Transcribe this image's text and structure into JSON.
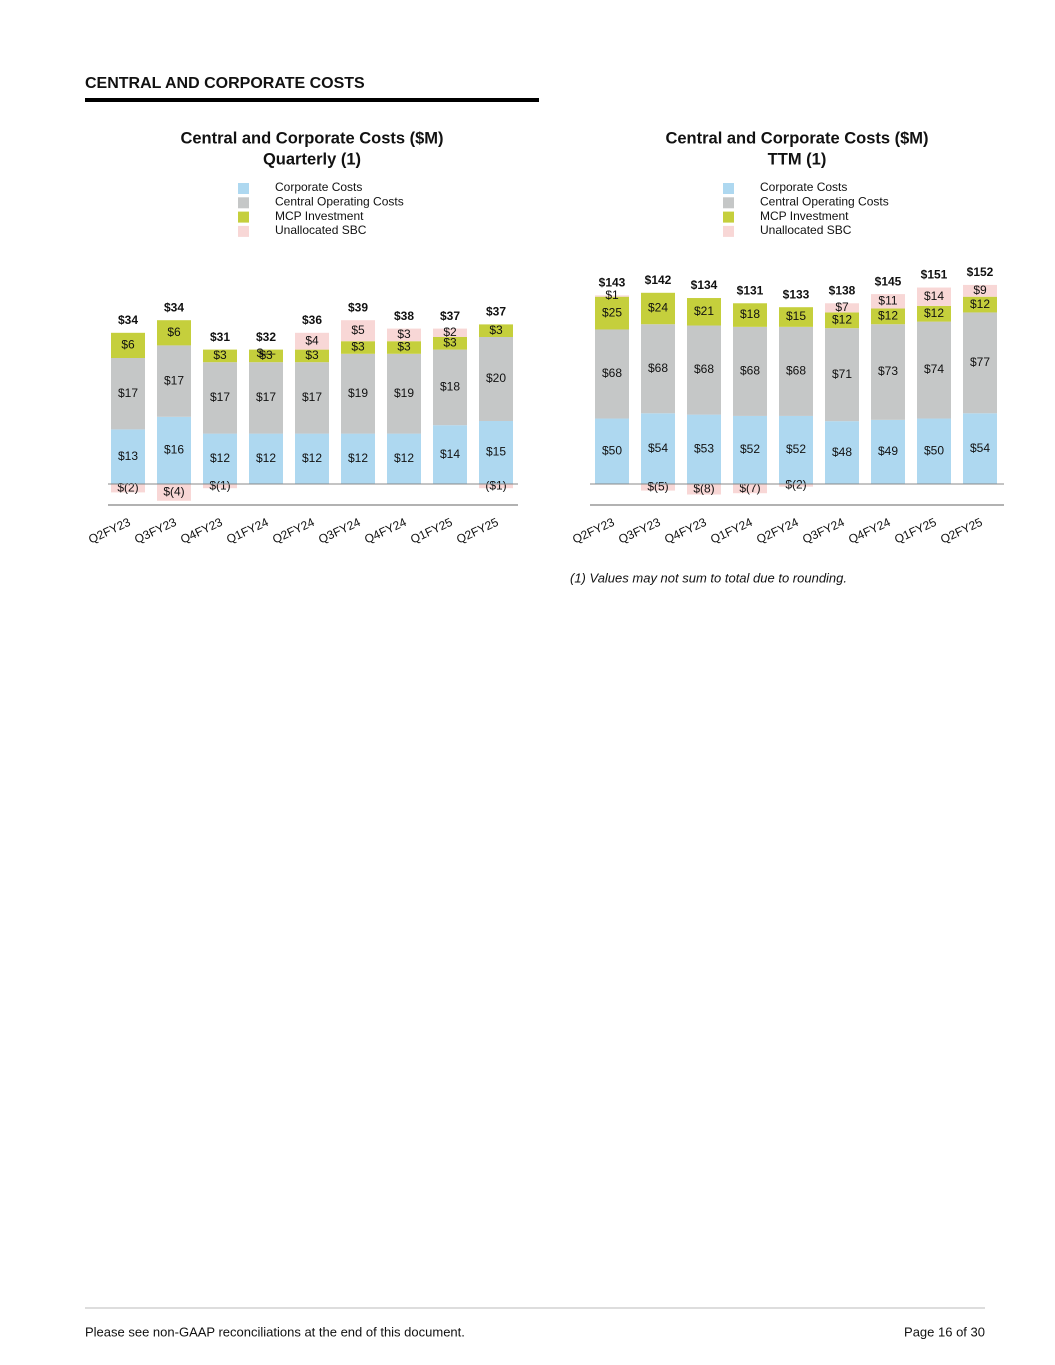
{
  "section_title": "CENTRAL AND CORPORATE COSTS",
  "chart_data": [
    {
      "type": "stacked-bar",
      "title": "Central and Corporate Costs ($M)",
      "subtitle": "Quarterly (1)",
      "categories": [
        "Q2FY23",
        "Q3FY23",
        "Q4FY23",
        "Q1FY24",
        "Q2FY24",
        "Q3FY24",
        "Q4FY24",
        "Q1FY25",
        "Q2FY25"
      ],
      "ylim": [
        -5,
        40
      ],
      "series": [
        {
          "name": "Corporate Costs",
          "color": "#aed8f0",
          "values": [
            13,
            16,
            12,
            12,
            12,
            12,
            12,
            14,
            15
          ],
          "value_labels": [
            "$13",
            "$16",
            "$12",
            "$12",
            "$12",
            "$12",
            "$12",
            "$14",
            "$15"
          ]
        },
        {
          "name": "Central Operating Costs",
          "color": "#c5c7c7",
          "values": [
            17,
            17,
            17,
            17,
            17,
            19,
            19,
            18,
            20
          ],
          "value_labels": [
            "$17",
            "$17",
            "$17",
            "$17",
            "$17",
            "$19",
            "$19",
            "$18",
            "$20"
          ]
        },
        {
          "name": "MCP Investment",
          "color": "#c5cf3c",
          "values": [
            6,
            6,
            3,
            3,
            3,
            3,
            3,
            3,
            3
          ],
          "value_labels": [
            "$6",
            "$6",
            "$3",
            "$3",
            "$3",
            "$3",
            "$3",
            "$3",
            "$3"
          ]
        },
        {
          "name": "Unallocated SBC",
          "color": "#f8d7d6",
          "values": [
            -2,
            -4,
            -1,
            0,
            4,
            5,
            3,
            2,
            -1
          ],
          "value_labels": [
            "$(2)",
            "$(4)",
            "$(1)",
            "$—",
            "$4",
            "$5",
            "$3",
            "$2",
            "($1)"
          ]
        }
      ],
      "totals": {
        "values": [
          34,
          34,
          31,
          32,
          36,
          39,
          38,
          37,
          37
        ],
        "value_labels": [
          "$34",
          "$34",
          "$31",
          "$32",
          "$36",
          "$39",
          "$38",
          "$37",
          "$37"
        ]
      }
    },
    {
      "type": "stacked-bar",
      "title": "Central and Corporate Costs ($M)",
      "subtitle": "TTM (1)",
      "categories": [
        "Q2FY23",
        "Q3FY23",
        "Q4FY23",
        "Q1FY24",
        "Q2FY24",
        "Q3FY24",
        "Q4FY24",
        "Q1FY25",
        "Q2FY25"
      ],
      "ylim": [
        -16,
        155
      ],
      "series": [
        {
          "name": "Corporate Costs",
          "color": "#aed8f0",
          "values": [
            50,
            54,
            53,
            52,
            52,
            48,
            49,
            50,
            54
          ],
          "value_labels": [
            "$50",
            "$54",
            "$53",
            "$52",
            "$52",
            "$48",
            "$49",
            "$50",
            "$54"
          ]
        },
        {
          "name": "Central Operating Costs",
          "color": "#c5c7c7",
          "values": [
            68,
            68,
            68,
            68,
            68,
            71,
            73,
            74,
            77
          ],
          "value_labels": [
            "$68",
            "$68",
            "$68",
            "$68",
            "$68",
            "$71",
            "$73",
            "$74",
            "$77"
          ]
        },
        {
          "name": "MCP Investment",
          "color": "#c5cf3c",
          "values": [
            25,
            24,
            21,
            18,
            15,
            12,
            12,
            12,
            12
          ],
          "value_labels": [
            "$25",
            "$24",
            "$21",
            "$18",
            "$15",
            "$12",
            "$12",
            "$12",
            "$12"
          ]
        },
        {
          "name": "Unallocated SBC",
          "color": "#f8d7d6",
          "values": [
            1,
            -5,
            -8,
            -7,
            -2,
            7,
            11,
            14,
            9
          ],
          "value_labels": [
            "$1",
            "$(5)",
            "$(8)",
            "$(7)",
            "$(2)",
            "$7",
            "$11",
            "$14",
            "$9"
          ]
        }
      ],
      "totals": {
        "values": [
          143,
          142,
          134,
          131,
          133,
          138,
          145,
          151,
          152
        ],
        "value_labels": [
          "$143",
          "$142",
          "$134",
          "$131",
          "$133",
          "$138",
          "$145",
          "$151",
          "$152"
        ]
      }
    }
  ],
  "footnote": "(1) Values may not sum to total due to rounding.",
  "footer": {
    "left": "Please see non-GAAP reconciliations at the end of this document.",
    "right": "Page 16 of 30"
  }
}
